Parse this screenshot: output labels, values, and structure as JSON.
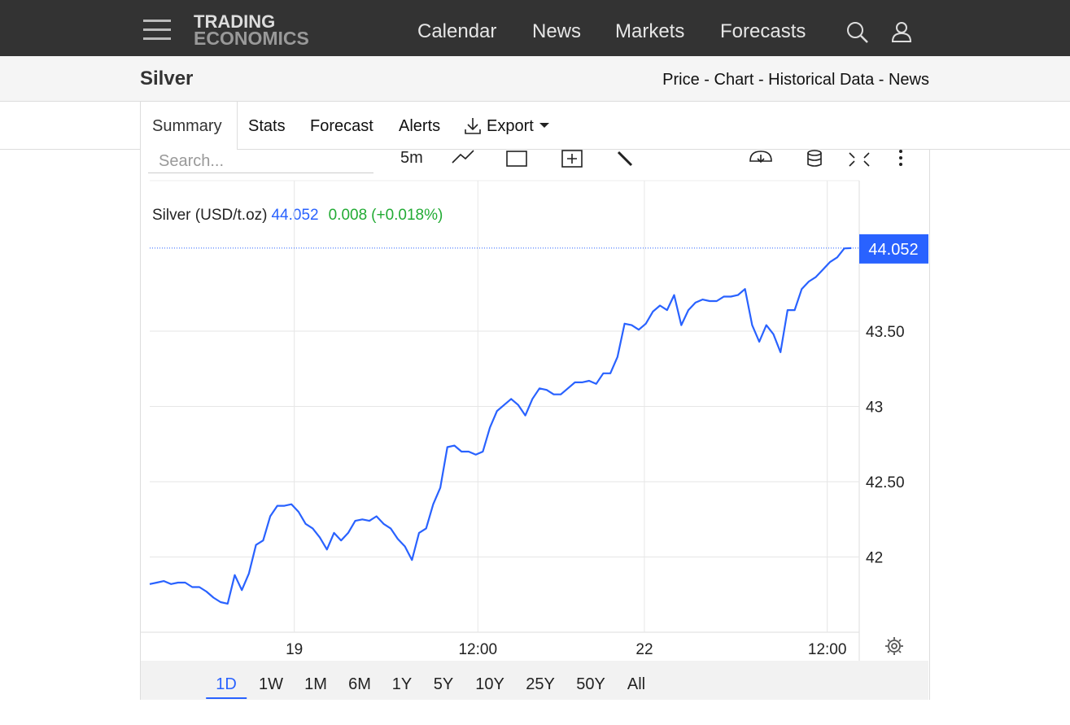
{
  "nav": {
    "menu": [
      "Calendar",
      "News",
      "Markets",
      "Forecasts"
    ]
  },
  "logo": {
    "line1": "TRADING",
    "line2": "ECONOMICS"
  },
  "header": {
    "title": "Silver",
    "links": "Price - Chart - Historical Data - News"
  },
  "tabs": [
    "Summary",
    "Stats",
    "Forecast",
    "Alerts",
    "Export"
  ],
  "toolbar": {
    "search_placeholder": "Search...",
    "interval": "5m"
  },
  "ranges": [
    "1D",
    "1W",
    "1M",
    "6M",
    "1Y",
    "5Y",
    "10Y",
    "25Y",
    "50Y",
    "All"
  ],
  "active_range": "1D",
  "chart_data": {
    "type": "line",
    "series": [
      {
        "name": "Silver (USD/t.oz)",
        "color": "#2962ff",
        "values": [
          41.82,
          41.83,
          41.84,
          41.82,
          41.83,
          41.83,
          41.8,
          41.8,
          41.77,
          41.73,
          41.7,
          41.69,
          41.88,
          41.78,
          41.89,
          42.08,
          42.11,
          42.27,
          42.34,
          42.34,
          42.35,
          42.3,
          42.22,
          42.19,
          42.13,
          42.05,
          42.16,
          42.11,
          42.16,
          42.24,
          42.25,
          42.24,
          42.27,
          42.22,
          42.19,
          42.12,
          42.07,
          41.98,
          42.16,
          42.19,
          42.35,
          42.46,
          42.73,
          42.74,
          42.7,
          42.7,
          42.68,
          42.7,
          42.86,
          42.97,
          43.01,
          43.05,
          43.01,
          42.94,
          43.05,
          43.12,
          43.11,
          43.08,
          43.08,
          43.12,
          43.16,
          43.16,
          43.17,
          43.15,
          43.22,
          43.22,
          43.33,
          43.55,
          43.54,
          43.51,
          43.55,
          43.63,
          43.67,
          43.64,
          43.74,
          43.54,
          43.64,
          43.69,
          43.71,
          43.7,
          43.7,
          43.73,
          43.73,
          43.74,
          43.78,
          43.54,
          43.43,
          43.54,
          43.48,
          43.36,
          43.64,
          43.64,
          43.78,
          43.83,
          43.86,
          43.91,
          43.96,
          43.99,
          44.05,
          44.052
        ]
      }
    ],
    "last_value": 44.052,
    "change": 0.008,
    "change_pct": {
      "value": 0.018,
      "label": "(+0.018%)"
    },
    "change_color": "#22ab34",
    "xlim": [
      0,
      100
    ],
    "xticks": [
      {
        "value": 20.4,
        "label": "19"
      },
      {
        "value": 46.3,
        "label": "12:00"
      },
      {
        "value": 69.8,
        "label": "22"
      },
      {
        "value": 95.6,
        "label": "12:00"
      }
    ],
    "ylim": [
      41.5,
      44.5
    ],
    "yticks": [
      42,
      {
        "value": 42.5,
        "label": "42.50"
      },
      43,
      {
        "value": 43.5,
        "label": "43.50"
      }
    ],
    "grid": true
  }
}
